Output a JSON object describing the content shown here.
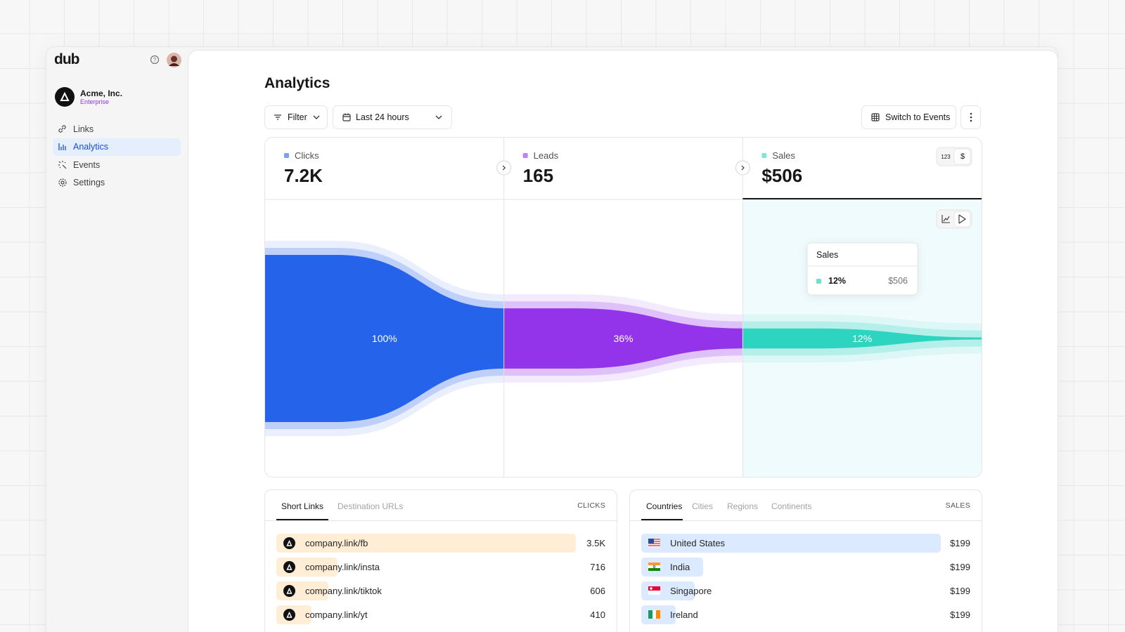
{
  "sidebar": {
    "logo": "dub",
    "workspace": {
      "name": "Acme, Inc.",
      "plan": "Enterprise"
    },
    "nav": [
      "Links",
      "Analytics",
      "Events",
      "Settings"
    ]
  },
  "header": {
    "title": "Analytics",
    "filter": "Filter",
    "date_range": "Last 24 hours",
    "switch": "Switch to Events",
    "unit_toggle": [
      "123",
      "$"
    ]
  },
  "chart_data": {
    "type": "funnel",
    "categories": [
      "Clicks",
      "Leads",
      "Sales"
    ],
    "totals": [
      "7.2K",
      "165",
      "$506"
    ],
    "values": [
      100,
      36,
      12
    ],
    "value_labels": [
      "100%",
      "36%",
      "12%"
    ],
    "colors": [
      "#2563eb",
      "#9333ea",
      "#2dd4bf"
    ]
  },
  "top_links": {
    "tabs": [
      "Short Links",
      "Destination URLs"
    ],
    "metric": "CLICKS",
    "names": [
      "company.link/fb",
      "company.link/insta",
      "company.link/tiktok",
      "company.link/yt"
    ],
    "values": [
      3500,
      716,
      606,
      410
    ],
    "value_labels": [
      "3.5K",
      "716",
      "606",
      "410"
    ]
  },
  "locations": {
    "tabs": [
      "Countries",
      "Cities",
      "Regions",
      "Continents"
    ],
    "metric": "SALES",
    "names": [
      "United States",
      "India",
      "Singapore",
      "Ireland"
    ],
    "values": [
      "$199",
      "$199",
      "$199",
      "$199"
    ]
  }
}
